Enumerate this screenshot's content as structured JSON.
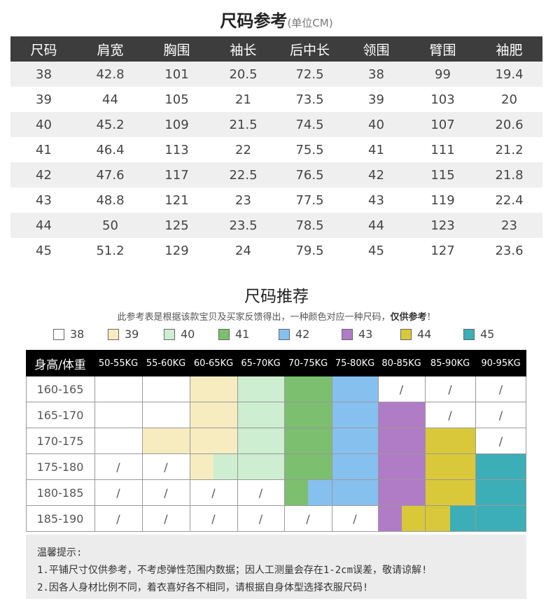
{
  "size_chart": {
    "title": "尺码参考",
    "unit": "(单位CM)",
    "headers": [
      "尺码",
      "肩宽",
      "胸围",
      "袖长",
      "后中长",
      "领围",
      "臂围",
      "袖肥"
    ],
    "rows": [
      [
        "38",
        "42.8",
        "101",
        "20.5",
        "72.5",
        "38",
        "99",
        "19.4"
      ],
      [
        "39",
        "44",
        "105",
        "21",
        "73.5",
        "39",
        "103",
        "20"
      ],
      [
        "40",
        "45.2",
        "109",
        "21.5",
        "74.5",
        "40",
        "107",
        "20.6"
      ],
      [
        "41",
        "46.4",
        "113",
        "22",
        "75.5",
        "41",
        "111",
        "21.2"
      ],
      [
        "42",
        "47.6",
        "117",
        "22.5",
        "76.5",
        "42",
        "115",
        "21.8"
      ],
      [
        "43",
        "48.8",
        "121",
        "23",
        "77.5",
        "43",
        "119",
        "22.4"
      ],
      [
        "44",
        "50",
        "125",
        "23.5",
        "78.5",
        "44",
        "123",
        "23"
      ],
      [
        "45",
        "51.2",
        "129",
        "24",
        "79.5",
        "45",
        "127",
        "23.6"
      ]
    ]
  },
  "recommend": {
    "title": "尺码推荐",
    "note_prefix": "此参考表是根据该款宝贝及买家反馈得出，一种颜色对应一种尺码，",
    "note_bold": "仅供参考",
    "note_suffix": "！",
    "legend": [
      {
        "size": "38",
        "color": "#ffffff"
      },
      {
        "size": "39",
        "color": "#f7ecbf"
      },
      {
        "size": "40",
        "color": "#cdeed0"
      },
      {
        "size": "41",
        "color": "#7cbf6e"
      },
      {
        "size": "42",
        "color": "#86c0ef"
      },
      {
        "size": "43",
        "color": "#b07cc6"
      },
      {
        "size": "44",
        "color": "#d9c93a"
      },
      {
        "size": "45",
        "color": "#3caeb7"
      }
    ],
    "corner": "身高/体重",
    "weights": [
      "50-55KG",
      "55-60KG",
      "60-65KG",
      "65-70KG",
      "70-75KG",
      "75-80KG",
      "80-85KG",
      "85-90KG",
      "90-95KG"
    ],
    "heights": [
      "160-165",
      "165-170",
      "170-175",
      "175-180",
      "180-185",
      "185-190"
    ],
    "na_mark": "/",
    "grid": [
      [
        [
          ""
        ],
        [
          ""
        ],
        [
          "39"
        ],
        [
          "40"
        ],
        [
          "41"
        ],
        [
          "42"
        ],
        [
          "/"
        ],
        [
          "/"
        ],
        [
          "/"
        ]
      ],
      [
        [
          ""
        ],
        [
          ""
        ],
        [
          "39"
        ],
        [
          "40"
        ],
        [
          "41"
        ],
        [
          "42"
        ],
        [
          "43"
        ],
        [
          "/"
        ],
        [
          "/"
        ]
      ],
      [
        [
          ""
        ],
        [
          "39"
        ],
        [
          "39"
        ],
        [
          "40"
        ],
        [
          "41"
        ],
        [
          "42"
        ],
        [
          "43"
        ],
        [
          "44"
        ],
        [
          "/"
        ]
      ],
      [
        [
          "/"
        ],
        [
          "/"
        ],
        [
          "39",
          "40"
        ],
        [
          "40"
        ],
        [
          "41"
        ],
        [
          "42"
        ],
        [
          "43"
        ],
        [
          "44"
        ],
        [
          "45"
        ]
      ],
      [
        [
          "/"
        ],
        [
          "/"
        ],
        [
          "/"
        ],
        [
          "/"
        ],
        [
          "41",
          "42"
        ],
        [
          "42"
        ],
        [
          "43"
        ],
        [
          "44"
        ],
        [
          "45"
        ]
      ],
      [
        [
          "/"
        ],
        [
          "/"
        ],
        [
          "/"
        ],
        [
          "/"
        ],
        [
          "/"
        ],
        [
          "/"
        ],
        [
          "43",
          "44"
        ],
        [
          "44",
          "45"
        ],
        [
          "45"
        ]
      ]
    ]
  },
  "tips": {
    "title": "温馨提示:",
    "lines": [
      "1.平铺尺寸仅供参考，不考虑弹性范围内数据；因人工测量会存在1-2cm误差，敬请谅解!",
      "2.因各人身材比例不同，着衣喜好各不相同，请根据自身体型选择衣服尺码!"
    ]
  }
}
